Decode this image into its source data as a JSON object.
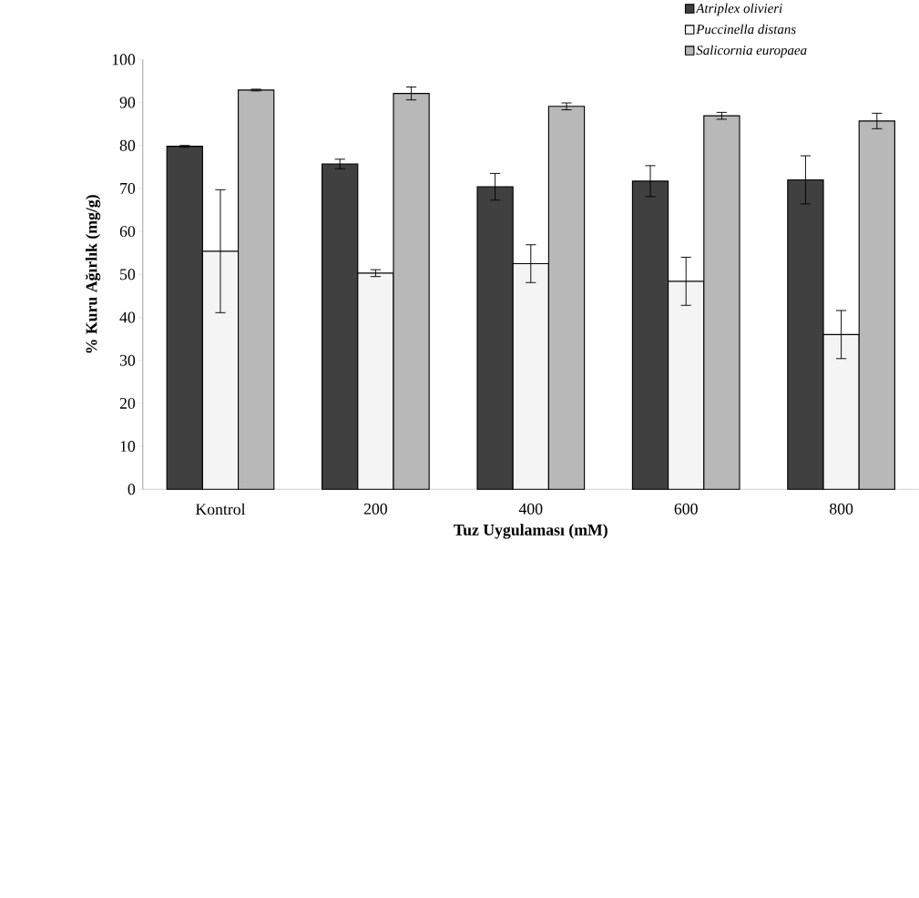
{
  "chart_data": {
    "type": "bar",
    "xlabel": "Tuz Uygulaması (mM)",
    "ylabel": "% Kuru Ağırlık (mg/g)",
    "categories": [
      "Kontrol",
      "200",
      "400",
      "600",
      "800"
    ],
    "series": [
      {
        "name": "Atriplex olivieri",
        "color": "#404040",
        "values": [
          79.8,
          75.7,
          70.4,
          71.7,
          72.0
        ],
        "errors": [
          0.2,
          1.1,
          3.1,
          3.6,
          5.6
        ]
      },
      {
        "name": "Puccinella distans",
        "color": "#f4f4f4",
        "values": [
          55.4,
          50.3,
          52.5,
          48.4,
          36.0
        ],
        "errors": [
          14.3,
          0.8,
          4.4,
          5.6,
          5.6
        ]
      },
      {
        "name": "Salicornia europaea",
        "color": "#b8b8b8",
        "values": [
          92.9,
          92.1,
          89.1,
          86.9,
          85.7
        ],
        "errors": [
          0.2,
          1.5,
          0.8,
          0.8,
          1.8
        ]
      }
    ],
    "ylim": [
      0,
      100
    ],
    "yticks": [
      0,
      10,
      20,
      30,
      40,
      50,
      60,
      70,
      80,
      90,
      100
    ],
    "grid": false,
    "legend": "top right"
  }
}
